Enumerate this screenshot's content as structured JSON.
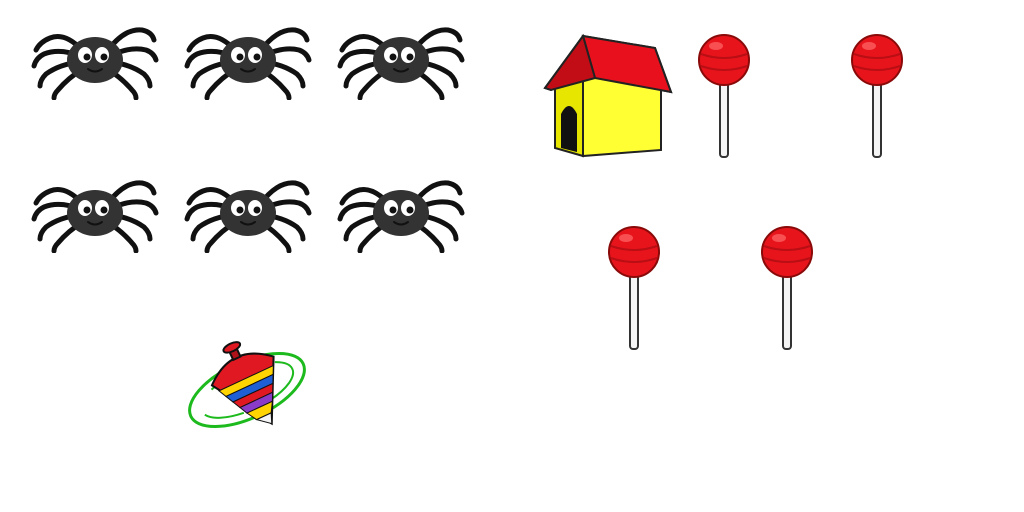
{
  "scene": {
    "groups": [
      {
        "object": "spider",
        "count": 6
      },
      {
        "object": "spinning-top",
        "count": 1
      },
      {
        "object": "dog-house",
        "count": 1
      },
      {
        "object": "lollipop",
        "count": 4
      }
    ],
    "colors": {
      "spider": "#333333",
      "lollipop": "#e8141c",
      "house_roof": "#e8101c",
      "house_wall": "#ffff33"
    }
  }
}
